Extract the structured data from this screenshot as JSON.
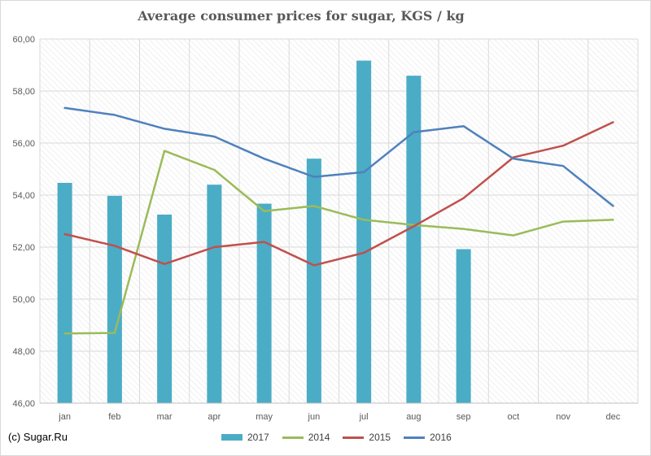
{
  "chart_data": {
    "type": "bar",
    "title": "Average consumer prices for sugar, KGS / kg",
    "xlabel": "",
    "ylabel": "",
    "categories": [
      "jan",
      "feb",
      "mar",
      "apr",
      "may",
      "jun",
      "jul",
      "aug",
      "sep",
      "oct",
      "nov",
      "dec"
    ],
    "ylim": [
      46,
      60
    ],
    "yticks": [
      "46,00",
      "48,00",
      "50,00",
      "52,00",
      "54,00",
      "56,00",
      "58,00",
      "60,00"
    ],
    "grid": true,
    "legend_position": "bottom",
    "series": [
      {
        "name": "2017",
        "type": "bar",
        "color": "#4bacc6",
        "values": [
          54.47,
          53.97,
          53.25,
          54.4,
          53.67,
          55.4,
          59.17,
          58.59,
          51.92,
          null,
          null,
          null
        ]
      },
      {
        "name": "2014",
        "type": "line",
        "color": "#9bbb59",
        "values": [
          48.68,
          48.7,
          55.7,
          54.97,
          53.38,
          53.58,
          53.05,
          52.85,
          52.7,
          52.45,
          52.98,
          53.05
        ]
      },
      {
        "name": "2015",
        "type": "line",
        "color": "#c0504d",
        "values": [
          52.5,
          52.05,
          51.35,
          52.0,
          52.2,
          51.3,
          51.78,
          52.8,
          53.88,
          55.45,
          55.9,
          56.8
        ]
      },
      {
        "name": "2016",
        "type": "line",
        "color": "#4f81bd",
        "values": [
          57.35,
          57.08,
          56.55,
          56.25,
          55.4,
          54.7,
          54.88,
          56.42,
          56.65,
          55.4,
          55.12,
          53.58
        ]
      }
    ]
  },
  "footer": {
    "copyright": "(c) Sugar.Ru"
  }
}
